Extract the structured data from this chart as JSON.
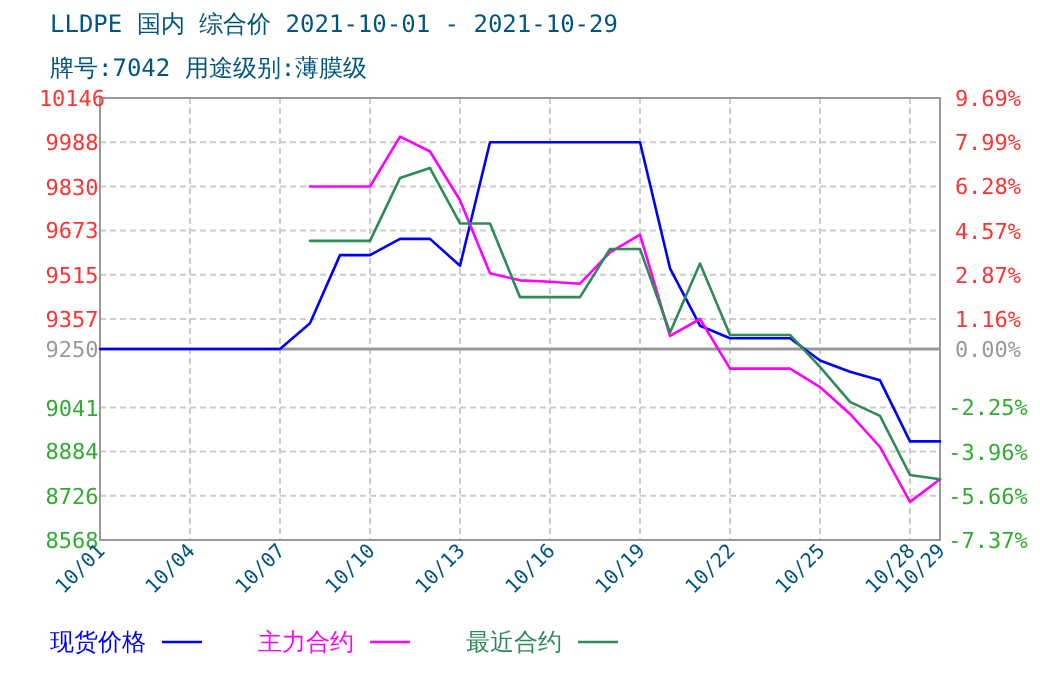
{
  "chart_data": {
    "type": "line",
    "title": "LLDPE 国内 综合价 2021-10-01 - 2021-10-29",
    "subtitle": "牌号:7042 用途级别:薄膜级",
    "x": [
      "2021-10-01",
      "2021-10-02",
      "2021-10-03",
      "2021-10-04",
      "2021-10-05",
      "2021-10-06",
      "2021-10-07",
      "2021-10-08",
      "2021-10-09",
      "2021-10-10",
      "2021-10-11",
      "2021-10-12",
      "2021-10-13",
      "2021-10-14",
      "2021-10-15",
      "2021-10-16",
      "2021-10-17",
      "2021-10-18",
      "2021-10-19",
      "2021-10-20",
      "2021-10-21",
      "2021-10-22",
      "2021-10-23",
      "2021-10-24",
      "2021-10-25",
      "2021-10-26",
      "2021-10-27",
      "2021-10-28",
      "2021-10-29"
    ],
    "series": [
      {
        "name": "现货价格",
        "color": "#0000ff",
        "values": [
          9250,
          9250,
          9250,
          9250,
          9250,
          9250,
          9250,
          9342,
          9585,
          9585,
          9643,
          9643,
          9547,
          9988,
          9988,
          9988,
          9988,
          9988,
          9988,
          9538,
          9333,
          9288,
          9288,
          9288,
          9209,
          9169,
          9138,
          8920,
          8920
        ]
      },
      {
        "name": "主力合约",
        "color": "#ff00ff",
        "values": [
          null,
          null,
          null,
          null,
          null,
          null,
          null,
          9830,
          9830,
          9830,
          10008,
          9955,
          9781,
          9520,
          9495,
          9490,
          9483,
          9595,
          9658,
          9297,
          9357,
          9180,
          9180,
          9180,
          9114,
          9018,
          8900,
          8704,
          8785
        ]
      },
      {
        "name": "最近合约",
        "color": "#2e8b57",
        "values": [
          null,
          null,
          null,
          null,
          null,
          null,
          null,
          9636,
          9636,
          9636,
          9860,
          9896,
          9698,
          9698,
          9435,
          9435,
          9435,
          9607,
          9607,
          9309,
          9555,
          9300,
          9300,
          9300,
          9186,
          9061,
          9011,
          8800,
          8785
        ]
      }
    ],
    "xlim": [
      "2021-10-01",
      "2021-10-29"
    ],
    "xticks": [
      {
        "value": "2021-10-01",
        "label": "10/01"
      },
      {
        "value": "2021-10-04",
        "label": "10/04"
      },
      {
        "value": "2021-10-07",
        "label": "10/07"
      },
      {
        "value": "2021-10-10",
        "label": "10/10"
      },
      {
        "value": "2021-10-13",
        "label": "10/13"
      },
      {
        "value": "2021-10-16",
        "label": "10/16"
      },
      {
        "value": "2021-10-19",
        "label": "10/19"
      },
      {
        "value": "2021-10-22",
        "label": "10/22"
      },
      {
        "value": "2021-10-25",
        "label": "10/25"
      },
      {
        "value": "2021-10-28",
        "label": "10/28"
      },
      {
        "value": "2021-10-29",
        "label": "10/29"
      }
    ],
    "ylim": [
      8568,
      10146
    ],
    "yticks": [
      8568,
      8726,
      8884,
      9041,
      9250,
      9357,
      9515,
      9673,
      9830,
      9988,
      10146
    ],
    "y2lim": [
      -7.37,
      9.69
    ],
    "y2ticks": [
      {
        "value": -7.37,
        "label": "-7.37%"
      },
      {
        "value": -5.66,
        "label": "-5.66%"
      },
      {
        "value": -3.96,
        "label": "-3.96%"
      },
      {
        "value": -2.25,
        "label": "-2.25%"
      },
      {
        "value": 0,
        "label": "0.00%"
      },
      {
        "value": 1.16,
        "label": "1.16%"
      },
      {
        "value": 2.87,
        "label": "2.87%"
      },
      {
        "value": 4.57,
        "label": "4.57%"
      },
      {
        "value": 6.28,
        "label": "6.28%"
      },
      {
        "value": 7.99,
        "label": "7.99%"
      },
      {
        "value": 9.69,
        "label": "9.69%"
      }
    ],
    "ref_lines": [
      {
        "axis": "y",
        "value": 9250,
        "color": "#999999"
      }
    ],
    "grid": true,
    "legend": "bottom",
    "marker": "none",
    "line_style": "solid"
  }
}
